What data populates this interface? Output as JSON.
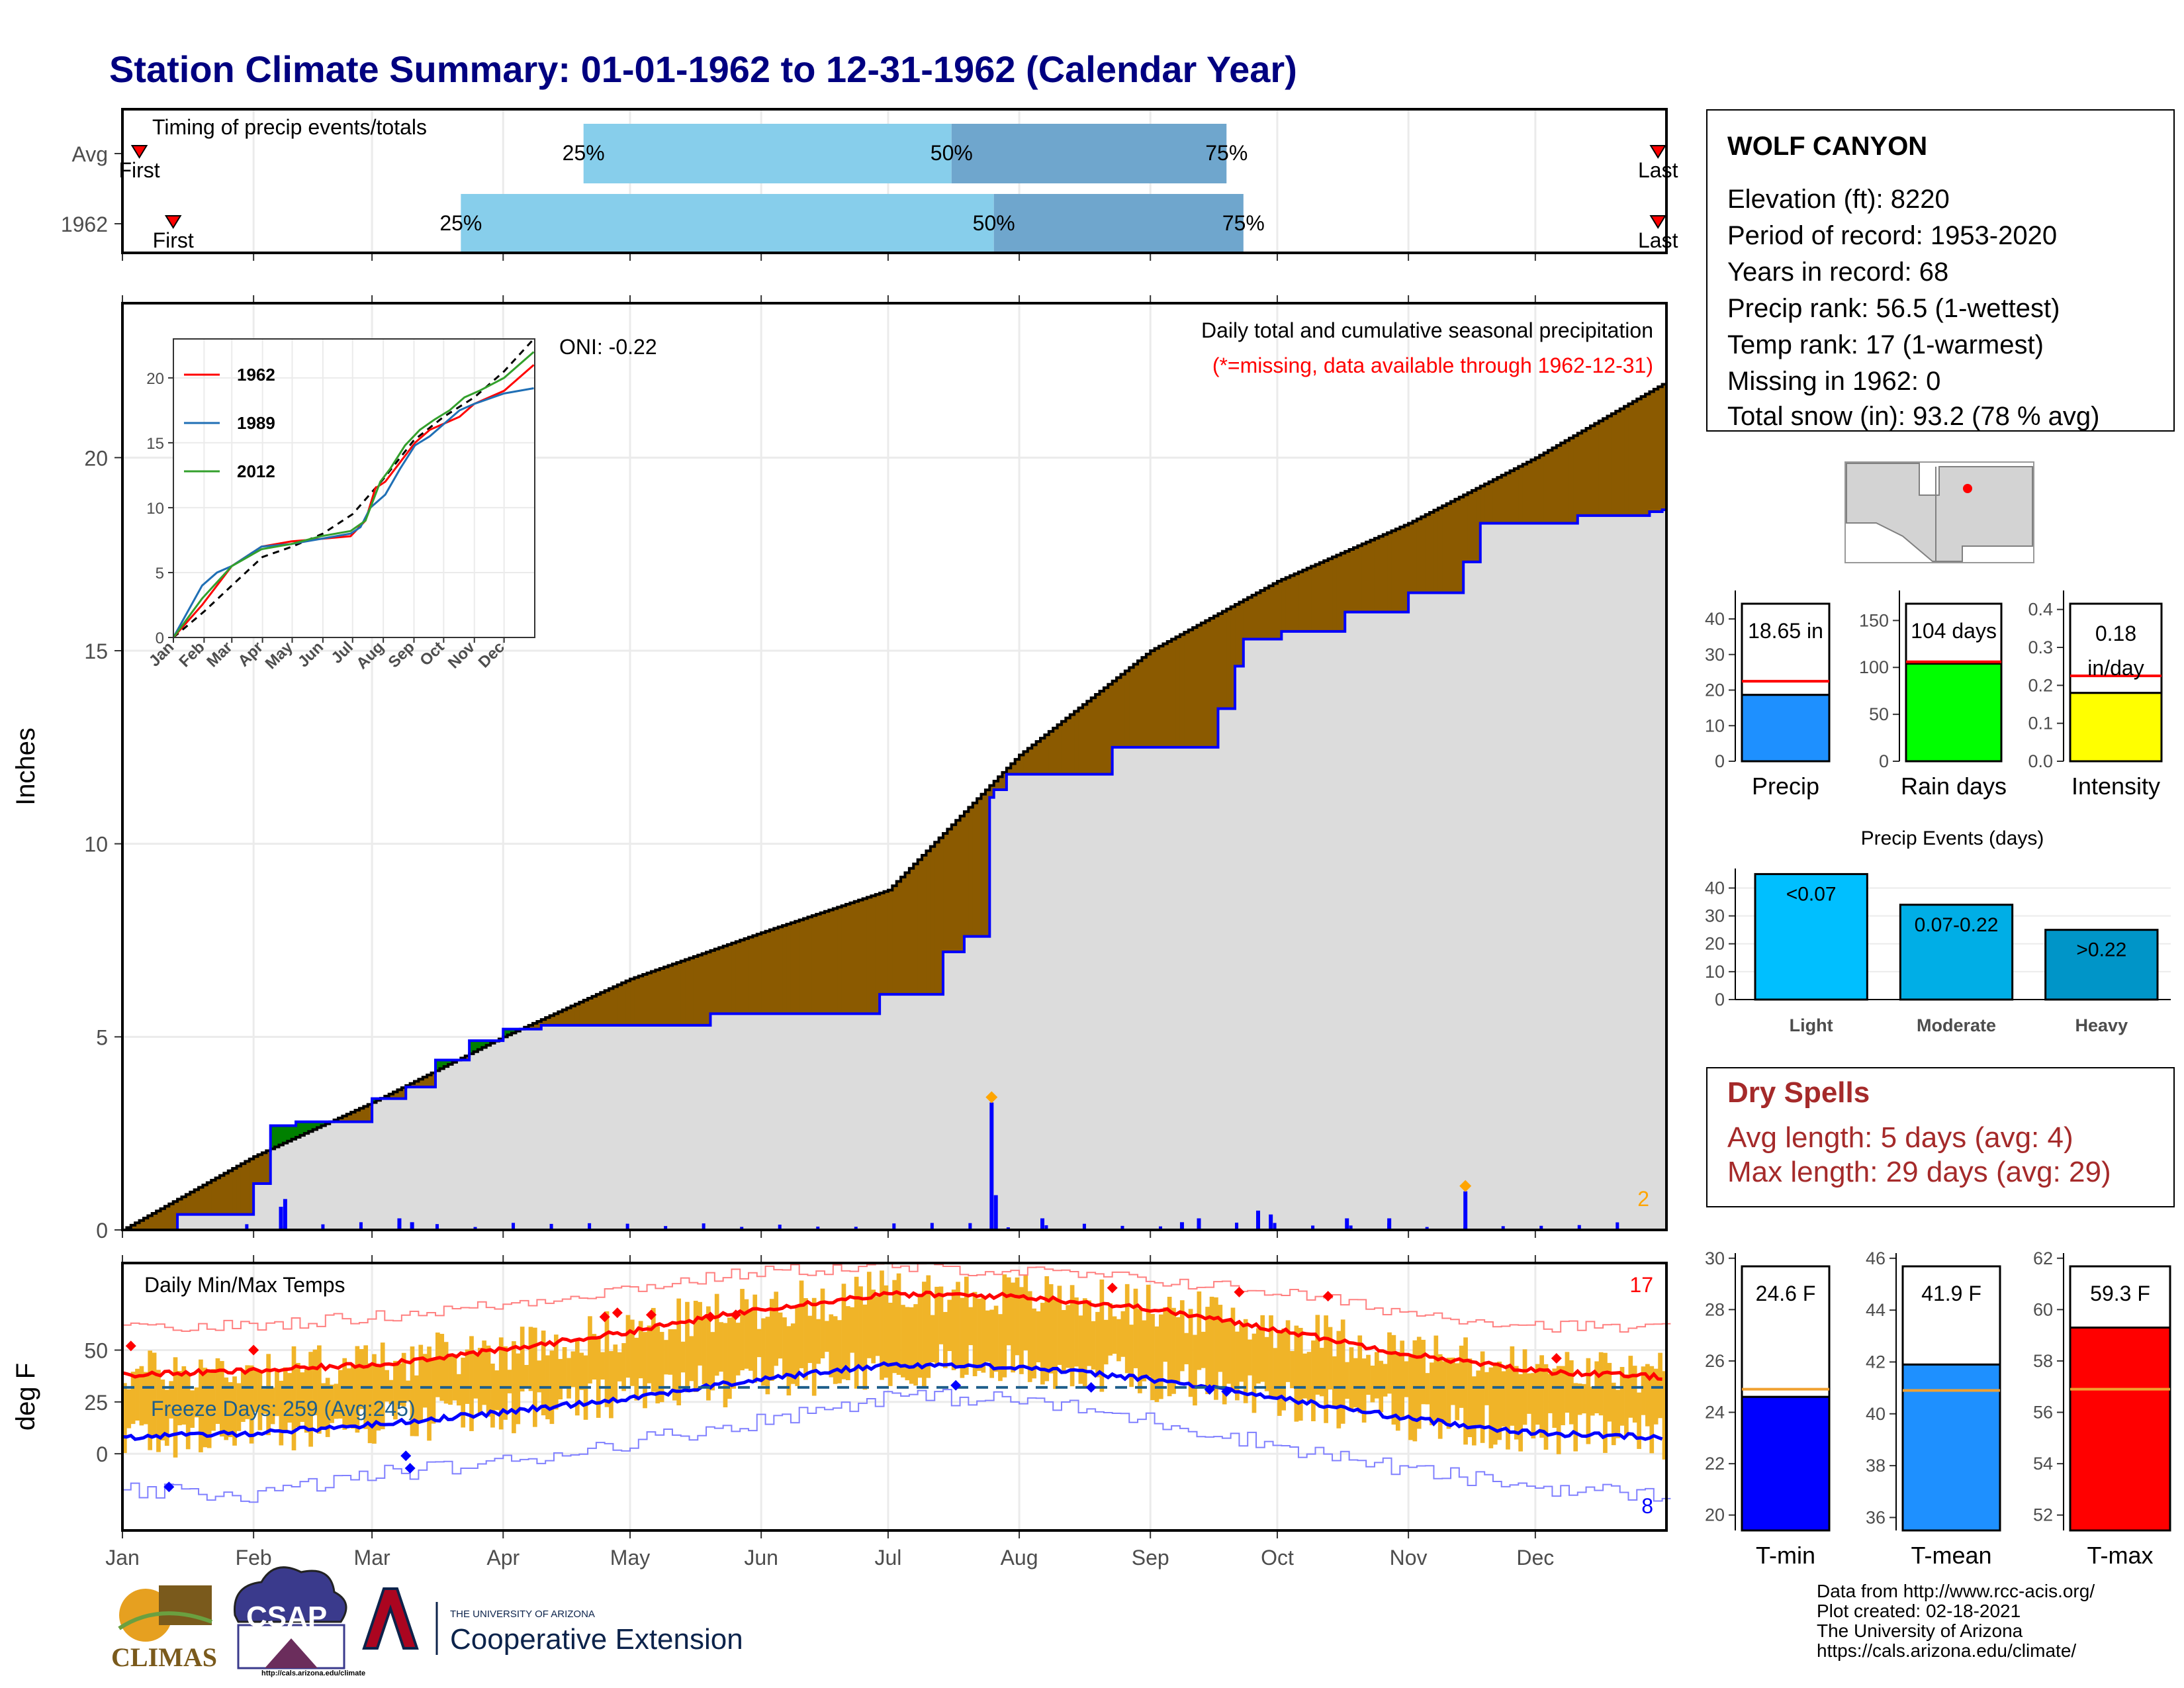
{
  "title": "Station Climate Summary: 01-01-1962 to 12-31-1962 (Calendar Year)",
  "colors": {
    "title": "#000080",
    "light_blue": "#87ceeb",
    "steel_blue": "#6fa6cd",
    "brown": "#8b5a00",
    "gray_fill": "#dcdcdc",
    "green": "#008000",
    "blue": "#0000ff",
    "red": "#ff0000",
    "orange": "#ffa500",
    "gold": "#f0b428",
    "dry_red": "#a52a2a"
  },
  "station": {
    "name": "WOLF CANYON",
    "lines": [
      "Elevation (ft): 8220",
      "Period of record: 1953-2020",
      "Years in record: 68",
      "Precip rank: 56.5 (1-wettest)",
      "Temp rank: 17 (1-warmest)",
      "Missing in 1962: 0",
      "Total snow (in): 93.2 (78 % avg)"
    ]
  },
  "dry_spells": {
    "title": "Dry Spells",
    "avg": "Avg length: 5 days (avg: 4)",
    "max": "Max length: 29 days (avg: 29)"
  },
  "footer": {
    "lines": [
      "Data from http://www.rcc-acis.org/",
      "Plot created: 02-18-2021",
      "The University of Arizona",
      "https://cals.arizona.edu/climate/"
    ],
    "logos": {
      "climas": "CLIMAS",
      "csap": "CSAP",
      "csap_url": "http://cals.arizona.edu/climate",
      "ua_small": "THE UNIVERSITY OF ARIZONA",
      "ua_big": "Cooperative Extension"
    }
  },
  "chart_data": [
    {
      "id": "timing",
      "type": "bar",
      "title": "Timing of precip events/totals",
      "categories": [
        "Avg",
        "1962"
      ],
      "quantile_labels": [
        "25%",
        "50%",
        "75%"
      ],
      "first_label": "First",
      "last_label": "Last",
      "rows": [
        {
          "name": "Avg",
          "first": "Jan 5",
          "q25": "Apr 20",
          "q50": "Jul 16",
          "q75": "Sep 19",
          "last": "Dec 30"
        },
        {
          "name": "1962",
          "first": "Jan 13",
          "q25": "Mar 22",
          "q50": "Jul 26",
          "q75": "Sep 23",
          "last": "Dec 30"
        }
      ]
    },
    {
      "id": "precip",
      "type": "area",
      "ylabel": "Inches",
      "ylim": [
        0,
        24
      ],
      "yticks": [
        0,
        5,
        10,
        15,
        20
      ],
      "xticks": [
        "Jan",
        "Feb",
        "Mar",
        "Apr",
        "May",
        "Jun",
        "Jul",
        "Aug",
        "Sep",
        "Oct",
        "Nov",
        "Dec"
      ],
      "annotation_title": "Daily total and cumulative seasonal precipitation",
      "annotation_missing": "(*=missing, data available through 1962-12-31)",
      "oni": "ONI: -0.22",
      "corner_label": "2",
      "avg_cumulative": {
        "doy": [
          1,
          32,
          60,
          91,
          121,
          152,
          182,
          213,
          244,
          274,
          305,
          335,
          365
        ],
        "inches": [
          0,
          1.9,
          3.3,
          5.0,
          6.5,
          7.7,
          8.8,
          12.3,
          15.0,
          16.8,
          18.3,
          20.0,
          21.9
        ]
      },
      "year_cumulative": {
        "doy": [
          1,
          14,
          32,
          36,
          42,
          60,
          68,
          75,
          83,
          91,
          100,
          140,
          180,
          195,
          200,
          206,
          207,
          210,
          235,
          260,
          264,
          266,
          275,
          290,
          305,
          318,
          322,
          345,
          362,
          365
        ],
        "inches": [
          0,
          0.4,
          1.2,
          2.7,
          2.8,
          3.4,
          3.7,
          4.4,
          4.9,
          5.2,
          5.3,
          5.6,
          6.1,
          7.2,
          7.6,
          11.2,
          11.4,
          11.8,
          12.5,
          13.5,
          14.6,
          15.3,
          15.5,
          16.0,
          16.5,
          17.3,
          18.3,
          18.5,
          18.6,
          18.65
        ]
      },
      "daily_spikes": {
        "doy": [
          38,
          39,
          66,
          69,
          206,
          207,
          218,
          251,
          255,
          269,
          272,
          290,
          300,
          318
        ],
        "inches": [
          0.6,
          0.8,
          0.3,
          0.2,
          3.3,
          0.9,
          0.3,
          0.2,
          0.3,
          0.5,
          0.4,
          0.3,
          0.3,
          1.0
        ]
      },
      "inset": {
        "type": "line",
        "ylim": [
          0,
          23
        ],
        "yticks": [
          0,
          5,
          10,
          15,
          20
        ],
        "xticks": [
          "Jan",
          "Feb",
          "Mar",
          "Apr",
          "May",
          "Jun",
          "Jul",
          "Aug",
          "Sep",
          "Oct",
          "Nov",
          "Dec"
        ],
        "series": [
          {
            "name": "1962",
            "color": "#ff0000",
            "doy": [
              1,
              30,
              60,
              90,
              120,
              150,
              180,
              195,
              205,
              215,
              230,
              245,
              260,
              275,
              290,
              305,
              335,
              365
            ],
            "inches": [
              0,
              2.5,
              5.5,
              7.0,
              7.4,
              7.6,
              7.8,
              9.0,
              11.5,
              12.0,
              13.5,
              15.0,
              16.0,
              16.5,
              17.0,
              18.0,
              19.0,
              21.0
            ]
          },
          {
            "name": "1989",
            "color": "#1f6fb5",
            "doy": [
              1,
              30,
              45,
              60,
              90,
              120,
              150,
              180,
              190,
              200,
              215,
              230,
              245,
              260,
              275,
              290,
              305,
              335,
              365
            ],
            "inches": [
              0,
              4.0,
              5.0,
              5.5,
              7.0,
              7.2,
              7.6,
              8.0,
              8.5,
              10.0,
              11.0,
              13.0,
              14.8,
              15.5,
              16.5,
              17.5,
              18.0,
              18.8,
              19.2
            ]
          },
          {
            "name": "2012",
            "color": "#33a02c",
            "doy": [
              1,
              30,
              60,
              90,
              120,
              150,
              180,
              195,
              210,
              220,
              235,
              250,
              265,
              280,
              295,
              310,
              335,
              365
            ],
            "inches": [
              0,
              3.0,
              5.5,
              6.8,
              7.2,
              7.8,
              8.2,
              9.0,
              12.0,
              13.0,
              14.8,
              16.0,
              16.8,
              17.5,
              18.5,
              19.0,
              20.0,
              22.0
            ]
          }
        ],
        "avg_line": {
          "doy": [
            1,
            32,
            60,
            91,
            121,
            152,
            182,
            213,
            244,
            274,
            305,
            335,
            365
          ],
          "inches": [
            0,
            2.0,
            4.0,
            6.2,
            7.0,
            8.0,
            9.5,
            12.2,
            15.2,
            17.0,
            18.5,
            20.5,
            23.0
          ]
        }
      }
    },
    {
      "id": "temps",
      "type": "area",
      "ylabel": "deg F",
      "ylim": [
        -37,
        92
      ],
      "yticks": [
        0,
        25,
        50
      ],
      "xticks": [
        "Jan",
        "Feb",
        "Mar",
        "Apr",
        "May",
        "Jun",
        "Jul",
        "Aug",
        "Sep",
        "Oct",
        "Nov",
        "Dec"
      ],
      "label": "Daily Min/Max Temps",
      "freeze_label": "Freeze Days: 259 (Avg:245)",
      "freeze_line": 32,
      "record_high_count": "17",
      "record_low_count": "8",
      "avg_max": {
        "doy": [
          1,
          32,
          60,
          91,
          121,
          152,
          182,
          213,
          244,
          274,
          305,
          335,
          365
        ],
        "degF": [
          38,
          40,
          43,
          50,
          59,
          70,
          77,
          76,
          70,
          60,
          48,
          40,
          37
        ]
      },
      "avg_min": {
        "doy": [
          1,
          32,
          60,
          91,
          121,
          152,
          182,
          213,
          244,
          274,
          305,
          335,
          365
        ],
        "degF": [
          8,
          10,
          14,
          20,
          27,
          36,
          43,
          42,
          36,
          27,
          17,
          10,
          8
        ]
      },
      "rec_max": {
        "doy": [
          1,
          32,
          60,
          91,
          121,
          152,
          182,
          213,
          244,
          274,
          305,
          335,
          365
        ],
        "degF": [
          60,
          62,
          66,
          72,
          80,
          88,
          90,
          88,
          84,
          78,
          68,
          62,
          60
        ]
      },
      "rec_min": {
        "doy": [
          1,
          32,
          60,
          91,
          121,
          152,
          182,
          213,
          244,
          274,
          305,
          335,
          365
        ],
        "degF": [
          -18,
          -20,
          -10,
          -4,
          6,
          16,
          28,
          26,
          16,
          4,
          -8,
          -16,
          -20
        ]
      }
    },
    {
      "id": "precip_total",
      "type": "bar",
      "xlabel": "Precip",
      "value_label": "18.65 in",
      "value": 18.65,
      "avg": 22.5,
      "ylim": [
        0,
        48
      ],
      "yticks": [
        0,
        10,
        20,
        30,
        40
      ],
      "color": "#1e90ff"
    },
    {
      "id": "rain_days",
      "type": "bar",
      "xlabel": "Rain days",
      "value_label": "104 days",
      "value": 104,
      "avg": 106,
      "ylim": [
        0,
        182
      ],
      "yticks": [
        0,
        50,
        100,
        150
      ],
      "color": "#00ff00"
    },
    {
      "id": "intensity",
      "type": "bar",
      "xlabel": "Intensity",
      "value_label": "0.18",
      "value_label2": "in/day",
      "value": 0.18,
      "avg": 0.225,
      "ylim": [
        0,
        0.45
      ],
      "yticks": [
        0.0,
        0.1,
        0.2,
        0.3,
        0.4
      ],
      "ytick_labels": [
        "0.0",
        "0.1",
        "0.2",
        "0.3",
        "0.4"
      ],
      "color": "#ffff00"
    },
    {
      "id": "events",
      "type": "bar",
      "title": "Precip Events (days)",
      "categories": [
        "Light",
        "Moderate",
        "Heavy"
      ],
      "bar_labels": [
        "<0.07",
        "0.07-0.22",
        ">0.22"
      ],
      "values": [
        45,
        34,
        25
      ],
      "colors": [
        "#00bfff",
        "#00aee6",
        "#0095c8"
      ],
      "ylim": [
        0,
        47
      ],
      "yticks": [
        0,
        10,
        20,
        30,
        40
      ]
    },
    {
      "id": "tmin",
      "type": "bar",
      "xlabel": "T-min",
      "value_label": "24.6 F",
      "value": 24.6,
      "avg": 24.9,
      "ylim": [
        19.4,
        30.2
      ],
      "yticks": [
        20,
        22,
        24,
        26,
        28,
        30
      ],
      "color": "#0000ff"
    },
    {
      "id": "tmean",
      "type": "bar",
      "xlabel": "T-mean",
      "value_label": "41.9 F",
      "value": 41.9,
      "avg": 40.9,
      "ylim": [
        35.5,
        46.2
      ],
      "yticks": [
        36,
        38,
        40,
        42,
        44,
        46
      ],
      "color": "#1e90ff"
    },
    {
      "id": "tmax",
      "type": "bar",
      "xlabel": "T-max",
      "value_label": "59.3 F",
      "value": 59.3,
      "avg": 56.9,
      "ylim": [
        51.4,
        62.2
      ],
      "yticks": [
        52,
        54,
        56,
        58,
        60,
        62
      ],
      "color": "#ff0000"
    }
  ]
}
